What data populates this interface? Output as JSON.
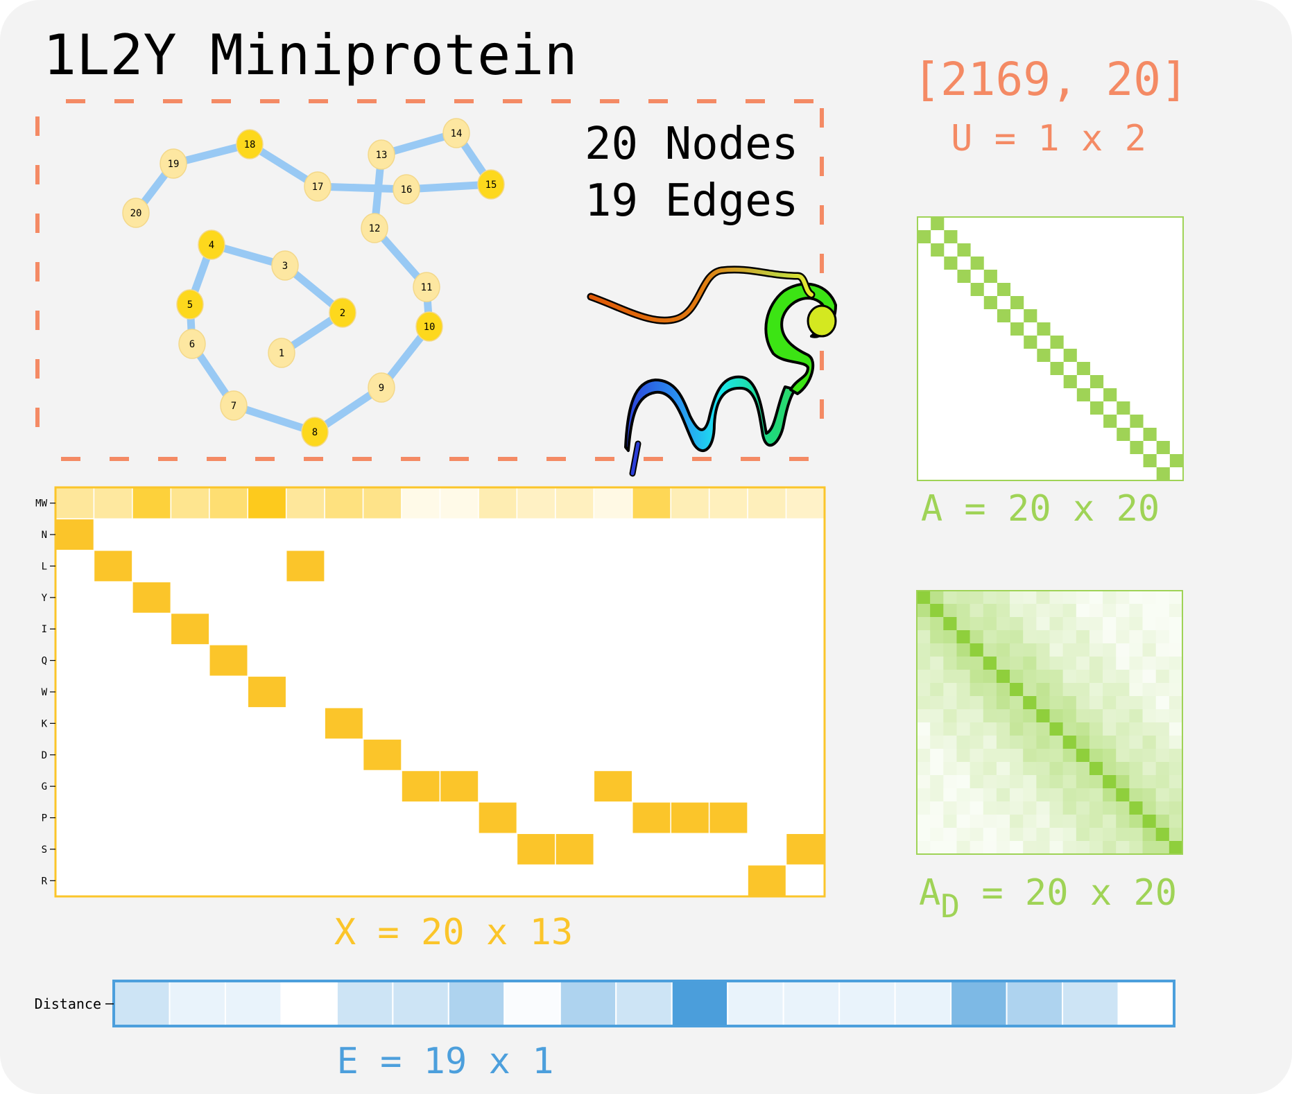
{
  "title": "1L2Y Miniprotein",
  "graph_stats": {
    "nodes": "20 Nodes",
    "edges": "19 Edges"
  },
  "global_shape": {
    "value": "[2169, 20]",
    "label": "U = 1 x 2"
  },
  "adjacency_label": "A = 20 x 20",
  "distance_label_main": "A",
  "distance_label_sub": "D",
  "distance_label_rest": " = 20 x 20",
  "feature_label": "X = 20 x 13",
  "edge_label": "E = 19 x 1",
  "distance_row_label": "Distance",
  "colors": {
    "orange": "#f48a64",
    "yellow": "#fbc52a",
    "green": "#9fd356",
    "blue": "#4c9fdc",
    "edge_blue": "#98c9f4",
    "node_highlight": "#fdd81d",
    "node_pale": "#fde7a1"
  },
  "protein_graph": {
    "nodes": [
      {
        "id": "1",
        "highlight": false
      },
      {
        "id": "2",
        "highlight": true
      },
      {
        "id": "3",
        "highlight": false
      },
      {
        "id": "4",
        "highlight": true
      },
      {
        "id": "5",
        "highlight": true
      },
      {
        "id": "6",
        "highlight": false
      },
      {
        "id": "7",
        "highlight": false
      },
      {
        "id": "8",
        "highlight": true
      },
      {
        "id": "9",
        "highlight": false
      },
      {
        "id": "10",
        "highlight": true
      },
      {
        "id": "11",
        "highlight": false
      },
      {
        "id": "12",
        "highlight": false
      },
      {
        "id": "13",
        "highlight": false
      },
      {
        "id": "14",
        "highlight": false
      },
      {
        "id": "15",
        "highlight": true
      },
      {
        "id": "16",
        "highlight": false
      },
      {
        "id": "17",
        "highlight": false
      },
      {
        "id": "18",
        "highlight": true
      },
      {
        "id": "19",
        "highlight": false
      },
      {
        "id": "20",
        "highlight": false
      }
    ],
    "edges": [
      [
        "1",
        "2"
      ],
      [
        "2",
        "3"
      ],
      [
        "3",
        "4"
      ],
      [
        "4",
        "5"
      ],
      [
        "5",
        "6"
      ],
      [
        "6",
        "7"
      ],
      [
        "7",
        "8"
      ],
      [
        "8",
        "9"
      ],
      [
        "9",
        "10"
      ],
      [
        "10",
        "11"
      ],
      [
        "11",
        "12"
      ],
      [
        "12",
        "13"
      ],
      [
        "13",
        "14"
      ],
      [
        "14",
        "15"
      ],
      [
        "15",
        "16"
      ],
      [
        "16",
        "17"
      ],
      [
        "17",
        "18"
      ],
      [
        "18",
        "19"
      ],
      [
        "19",
        "20"
      ]
    ]
  },
  "feature_matrix": {
    "row_labels": [
      "MW",
      "N",
      "L",
      "Y",
      "I",
      "Q",
      "W",
      "K",
      "D",
      "G",
      "P",
      "S",
      "R"
    ],
    "mw_intensity": [
      0.4,
      0.38,
      0.82,
      0.45,
      0.58,
      0.95,
      0.4,
      0.52,
      0.48,
      0.06,
      0.06,
      0.3,
      0.22,
      0.24,
      0.08,
      0.7,
      0.28,
      0.25,
      0.26,
      0.2
    ],
    "one_hot": [
      1,
      2,
      3,
      4,
      5,
      6,
      2,
      7,
      8,
      9,
      9,
      10,
      11,
      11,
      9,
      10,
      10,
      10,
      12,
      11
    ]
  },
  "adjacency_matrix": {
    "size": 20
  },
  "distance_matrix": {
    "size": 20
  },
  "edge_features": {
    "distance_intensity": [
      0.28,
      0.12,
      0.12,
      0.0,
      0.28,
      0.28,
      0.45,
      0.03,
      0.45,
      0.28,
      1.0,
      0.12,
      0.12,
      0.12,
      0.12,
      0.72,
      0.45,
      0.28,
      0.0
    ]
  }
}
